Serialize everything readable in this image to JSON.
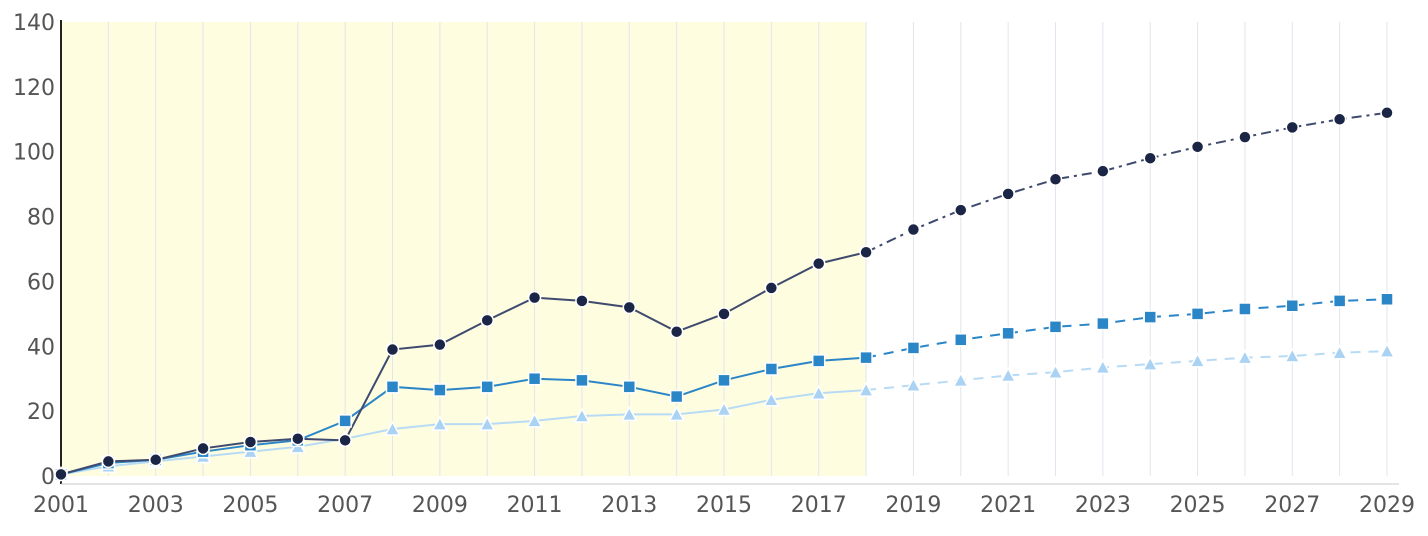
{
  "chart_data": {
    "type": "line",
    "title": "",
    "xlabel": "",
    "ylabel": "",
    "xlim": [
      2001,
      2029
    ],
    "ylim": [
      0,
      140
    ],
    "x_ticks": [
      "2001",
      "2003",
      "2005",
      "2007",
      "2009",
      "2011",
      "2013",
      "2015",
      "2017",
      "2019",
      "2021",
      "2023",
      "2025",
      "2027",
      "2029"
    ],
    "y_ticks": [
      "0",
      "20",
      "40",
      "60",
      "80",
      "100",
      "120",
      "140"
    ],
    "grid": {
      "vertical": true,
      "horizontal": false
    },
    "legend": "none",
    "highlight_band": {
      "x_from": 2001,
      "x_to": 2018,
      "color": "#fffde0"
    },
    "series": [
      {
        "marker": "circle",
        "color": "#1b2545",
        "line_color": "#3e4a6e",
        "actual": {
          "x": [
            2001,
            2002,
            2003,
            2004,
            2005,
            2006,
            2007,
            2008,
            2009,
            2010,
            2011,
            2012,
            2013,
            2014,
            2015,
            2016,
            2017,
            2018
          ],
          "y": [
            0.5,
            4.5,
            5,
            8.5,
            10.5,
            11.5,
            11,
            39,
            40.5,
            48,
            55,
            54,
            52,
            44.5,
            50,
            58,
            65.5,
            69
          ]
        },
        "projection": {
          "x": [
            2018,
            2019,
            2020,
            2021,
            2022,
            2023,
            2024,
            2025,
            2026,
            2027,
            2028,
            2029
          ],
          "y": [
            69,
            76,
            82,
            87,
            91.5,
            94,
            98,
            101.5,
            104.5,
            107.5,
            110,
            112
          ]
        }
      },
      {
        "marker": "square",
        "color": "#2b86c8",
        "line_color": "#2b86c8",
        "actual": {
          "x": [
            2001,
            2002,
            2003,
            2004,
            2005,
            2006,
            2007,
            2008,
            2009,
            2010,
            2011,
            2012,
            2013,
            2014,
            2015,
            2016,
            2017,
            2018
          ],
          "y": [
            0.5,
            4,
            5,
            7.5,
            9.5,
            11,
            17,
            27.5,
            26.5,
            27.5,
            30,
            29.5,
            27.5,
            24.5,
            29.5,
            33,
            35.5,
            36.5
          ]
        },
        "projection": {
          "x": [
            2018,
            2019,
            2020,
            2021,
            2022,
            2023,
            2024,
            2025,
            2026,
            2027,
            2028,
            2029
          ],
          "y": [
            36.5,
            39.5,
            42,
            44,
            46,
            47,
            49,
            50,
            51.5,
            52.5,
            54,
            54.5
          ]
        }
      },
      {
        "marker": "triangle",
        "color": "#aad2f3",
        "line_color": "#b7dbf5",
        "actual": {
          "x": [
            2001,
            2002,
            2003,
            2004,
            2005,
            2006,
            2007,
            2008,
            2009,
            2010,
            2011,
            2012,
            2013,
            2014,
            2015,
            2016,
            2017,
            2018
          ],
          "y": [
            0.5,
            3,
            4.5,
            6,
            7.5,
            9,
            11.5,
            14.5,
            16,
            16,
            17,
            18.5,
            19,
            19,
            20.5,
            23.5,
            25.5,
            26.5
          ]
        },
        "projection": {
          "x": [
            2018,
            2019,
            2020,
            2021,
            2022,
            2023,
            2024,
            2025,
            2026,
            2027,
            2028,
            2029
          ],
          "y": [
            26.5,
            28,
            29.5,
            31,
            32,
            33.5,
            34.5,
            35.5,
            36.5,
            37,
            38,
            38.5
          ]
        }
      }
    ]
  }
}
